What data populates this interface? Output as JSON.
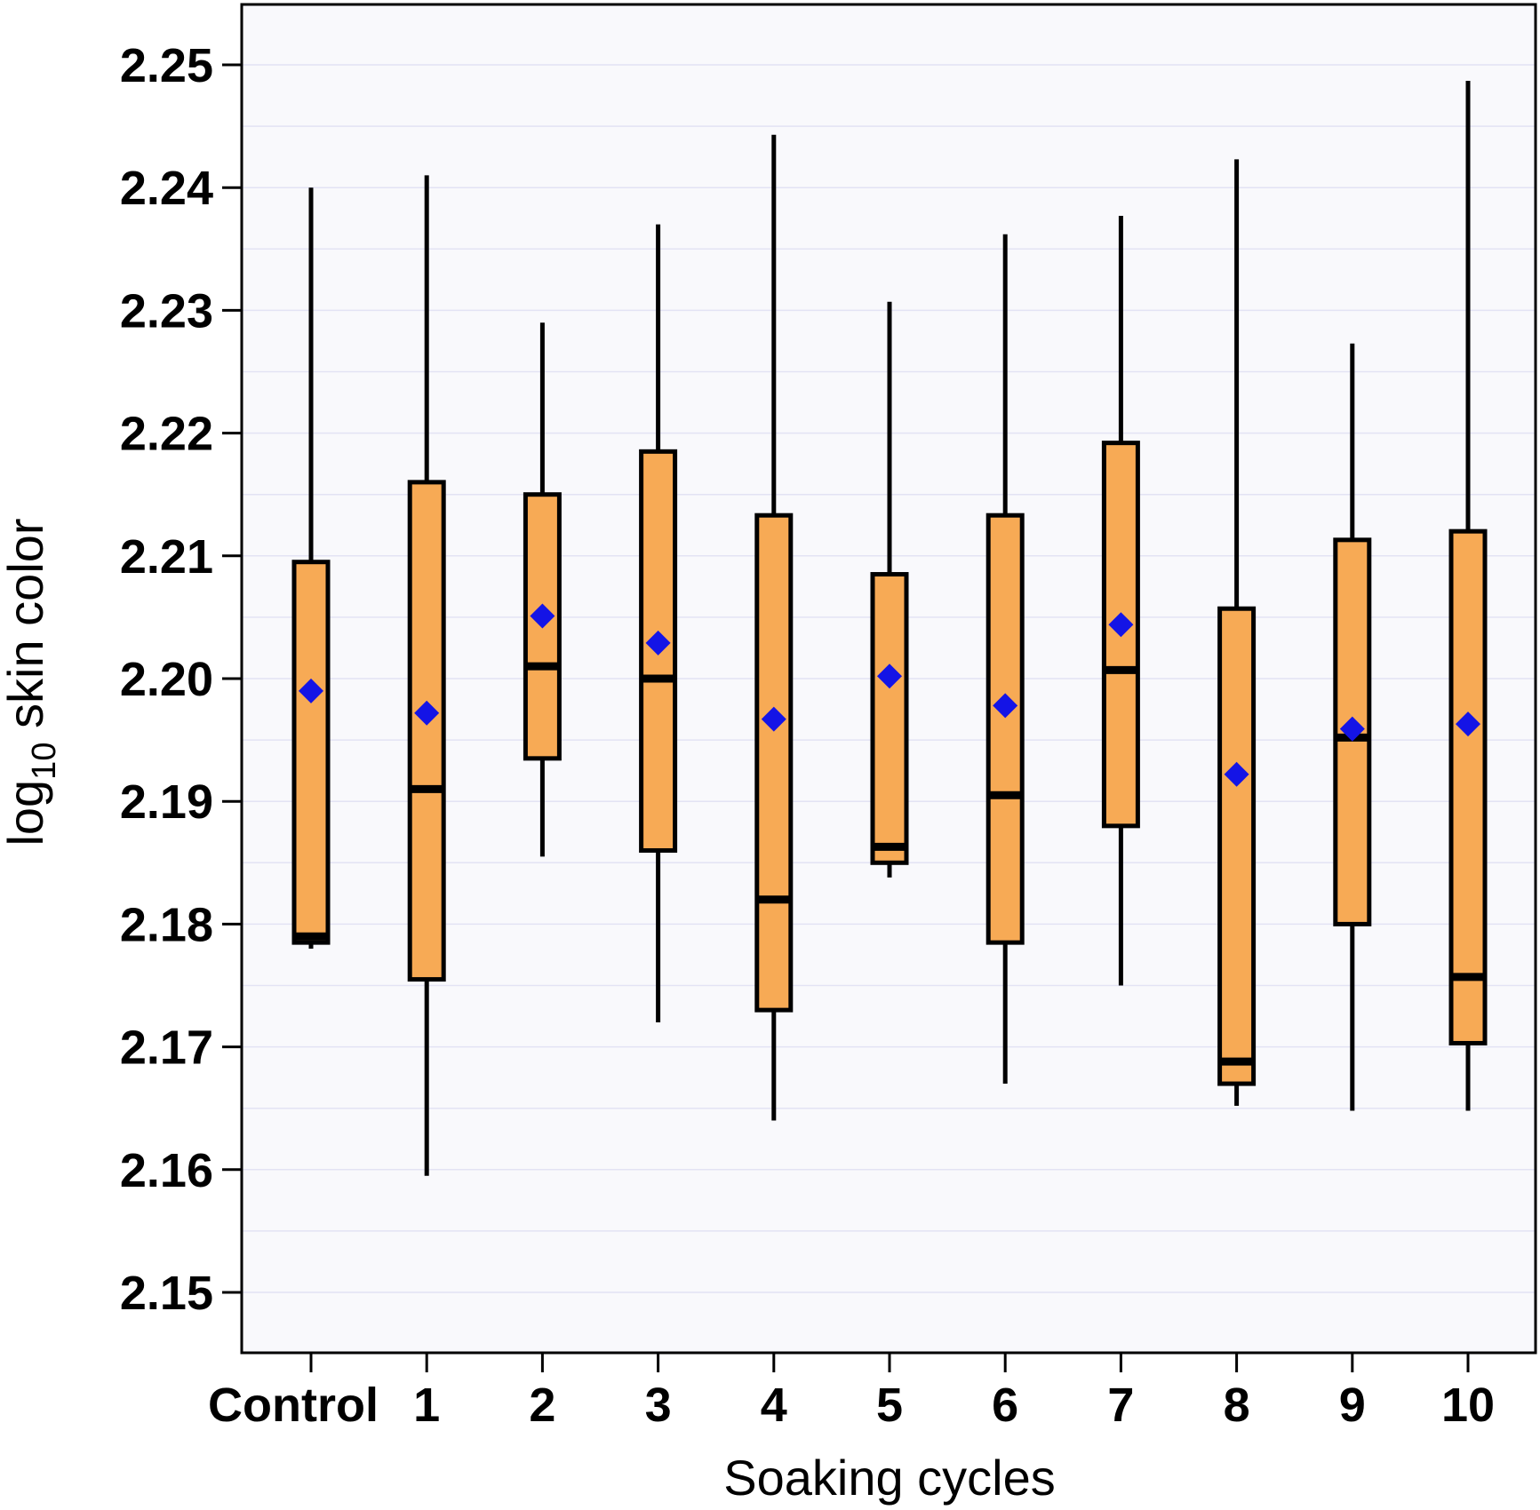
{
  "chart_data": {
    "type": "boxplot",
    "title": "",
    "xlabel": "Soaking cycles",
    "ylabel_main": "log",
    "ylabel_sub": "10",
    "ylabel_rest": " skin color",
    "ylim": [
      2.145,
      2.255
    ],
    "yticks": [
      2.15,
      2.16,
      2.17,
      2.18,
      2.19,
      2.2,
      2.21,
      2.22,
      2.23,
      2.24,
      2.25
    ],
    "ytick_labels": [
      "2.15",
      "2.16",
      "2.17",
      "2.18",
      "2.19",
      "2.20",
      "2.21",
      "2.22",
      "2.23",
      "2.24",
      "2.25"
    ],
    "categories": [
      "Control",
      "1",
      "2",
      "3",
      "4",
      "5",
      "6",
      "7",
      "8",
      "9",
      "10"
    ],
    "boxes": [
      {
        "category": "Control",
        "whisker_low": 2.178,
        "q1": 2.1785,
        "median": 2.179,
        "q3": 2.2095,
        "whisker_high": 2.24,
        "mean": 2.199
      },
      {
        "category": "1",
        "whisker_low": 2.1595,
        "q1": 2.1755,
        "median": 2.191,
        "q3": 2.216,
        "whisker_high": 2.241,
        "mean": 2.1972
      },
      {
        "category": "2",
        "whisker_low": 2.1855,
        "q1": 2.1935,
        "median": 2.201,
        "q3": 2.215,
        "whisker_high": 2.229,
        "mean": 2.2051
      },
      {
        "category": "3",
        "whisker_low": 2.172,
        "q1": 2.186,
        "median": 2.2,
        "q3": 2.2185,
        "whisker_high": 2.237,
        "mean": 2.2029
      },
      {
        "category": "4",
        "whisker_low": 2.164,
        "q1": 2.173,
        "median": 2.182,
        "q3": 2.2133,
        "whisker_high": 2.2443,
        "mean": 2.1967
      },
      {
        "category": "5",
        "whisker_low": 2.1838,
        "q1": 2.185,
        "median": 2.1863,
        "q3": 2.2085,
        "whisker_high": 2.2307,
        "mean": 2.2002
      },
      {
        "category": "6",
        "whisker_low": 2.167,
        "q1": 2.1785,
        "median": 2.1905,
        "q3": 2.2133,
        "whisker_high": 2.2362,
        "mean": 2.1978
      },
      {
        "category": "7",
        "whisker_low": 2.175,
        "q1": 2.188,
        "median": 2.2007,
        "q3": 2.2192,
        "whisker_high": 2.2377,
        "mean": 2.2044
      },
      {
        "category": "8",
        "whisker_low": 2.1652,
        "q1": 2.167,
        "median": 2.1688,
        "q3": 2.2057,
        "whisker_high": 2.2423,
        "mean": 2.1922
      },
      {
        "category": "9",
        "whisker_low": 2.1648,
        "q1": 2.18,
        "median": 2.1952,
        "q3": 2.2113,
        "whisker_high": 2.2273,
        "mean": 2.1959
      },
      {
        "category": "10",
        "whisker_low": 2.1648,
        "q1": 2.1703,
        "median": 2.1757,
        "q3": 2.212,
        "whisker_high": 2.2487,
        "mean": 2.1963
      }
    ],
    "colors": {
      "box_fill": "#F7AA55",
      "box_stroke": "#000000",
      "mean_marker": "#1414E6",
      "plot_background": "#F9F9FC",
      "gridline": "#E3E3F4"
    },
    "grid": true,
    "legend": "none"
  }
}
